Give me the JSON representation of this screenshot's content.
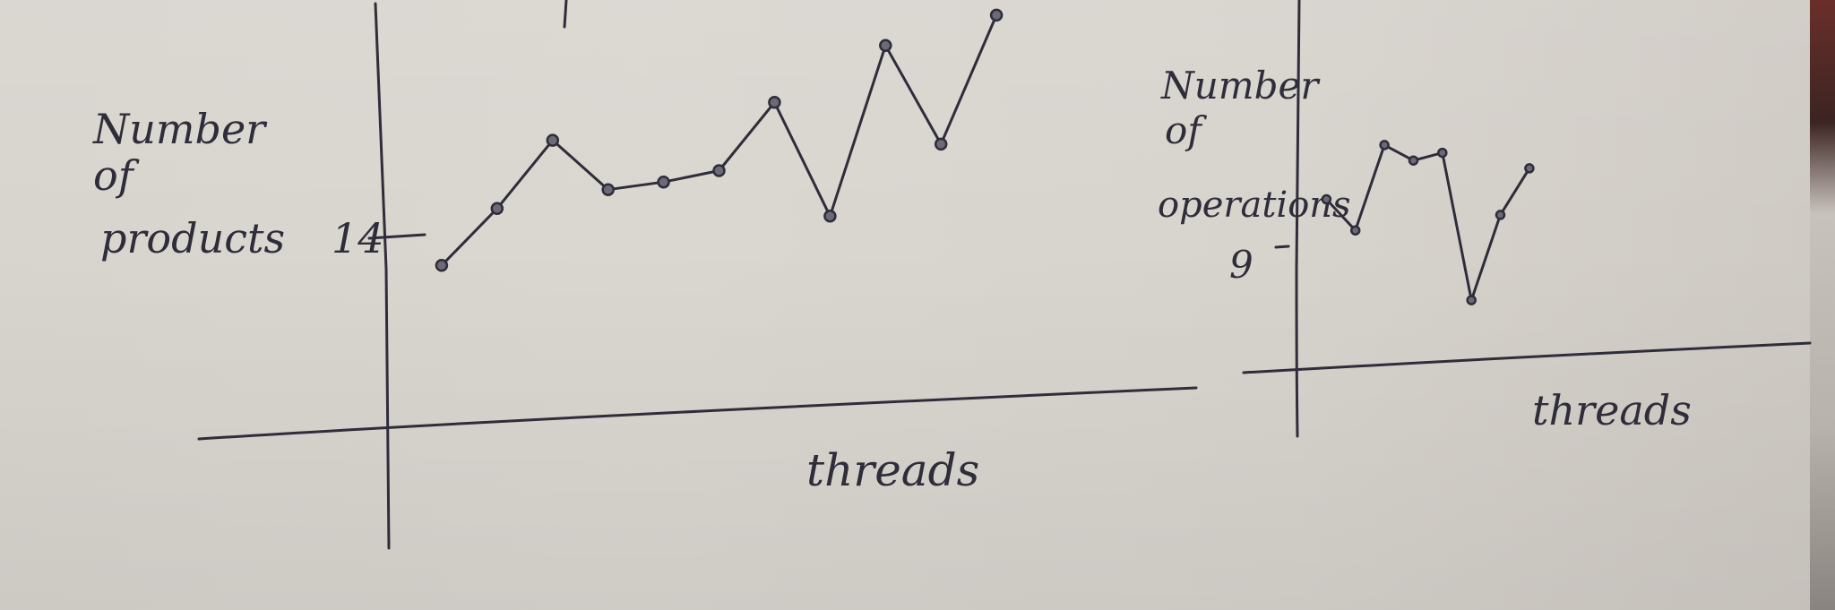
{
  "chart_data": [
    {
      "type": "line",
      "ylabel": "Number of products",
      "xlabel": "threads",
      "y_tick_label": "14",
      "y_tick_value": 14,
      "x": [
        1,
        2,
        3,
        4,
        5,
        6,
        7,
        8,
        9,
        10,
        11
      ],
      "series": [
        {
          "values": [
            14,
            15.5,
            17.3,
            16,
            16.2,
            16.5,
            18.3,
            15.3,
            19.8,
            17.2,
            20.6
          ]
        }
      ],
      "ylim": [
        9,
        21
      ],
      "xlim": [
        0,
        12.5
      ],
      "grid": false
    },
    {
      "type": "line",
      "ylabel": "Number of operations",
      "xlabel": "threads",
      "y_tick_label": "9",
      "y_tick_value": 9,
      "x": [
        1,
        2,
        3,
        4,
        5,
        6,
        7,
        8
      ],
      "series": [
        {
          "values": [
            9.1,
            8.7,
            9.8,
            9.6,
            9.7,
            7.8,
            8.9,
            9.5
          ]
        }
      ],
      "ylim": [
        6,
        11
      ],
      "xlim": [
        0,
        11
      ],
      "grid": false
    }
  ]
}
